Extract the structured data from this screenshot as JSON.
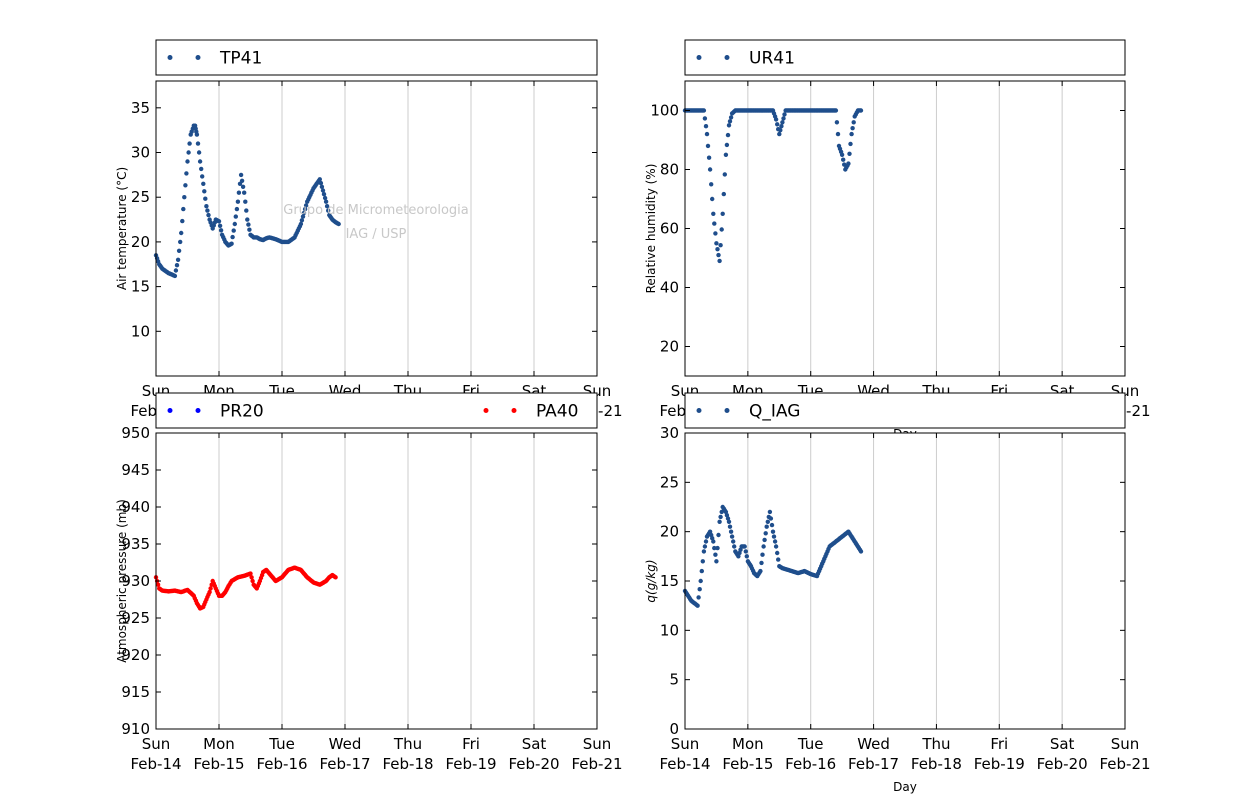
{
  "watermark": {
    "line1": "Grupo de Micrometeorologia",
    "line2": "IAG / USP"
  },
  "x_tick_labels": [
    [
      "Sun",
      "Feb-14"
    ],
    [
      "Mon",
      "Feb-15"
    ],
    [
      "Tue",
      "Feb-16"
    ],
    [
      "Wed",
      "Feb-17"
    ],
    [
      "Thu",
      "Feb-18"
    ],
    [
      "Fri",
      "Feb-19"
    ],
    [
      "Sat",
      "Feb-20"
    ],
    [
      "Sun",
      "Feb-21"
    ]
  ],
  "chart_data": [
    {
      "id": "temp",
      "type": "scatter",
      "xlabel": "",
      "ylabel": "Air temperature (°C)",
      "xlim": [
        0,
        7
      ],
      "ylim": [
        5,
        38
      ],
      "yticks": [
        10,
        15,
        20,
        25,
        30,
        35
      ],
      "grid": "x",
      "legend": "top",
      "series": [
        {
          "name": "TP41",
          "color": "#1f4e8c",
          "x": [
            0,
            0.05,
            0.1,
            0.2,
            0.3,
            0.35,
            0.4,
            0.45,
            0.5,
            0.55,
            0.6,
            0.62,
            0.65,
            0.7,
            0.75,
            0.8,
            0.85,
            0.9,
            0.95,
            1.0,
            1.05,
            1.1,
            1.15,
            1.2,
            1.25,
            1.3,
            1.35,
            1.4,
            1.45,
            1.5,
            1.55,
            1.6,
            1.65,
            1.7,
            1.75,
            1.8,
            1.9,
            2.0,
            2.1,
            2.2,
            2.3,
            2.4,
            2.5,
            2.6,
            2.7,
            2.75,
            2.8,
            2.85,
            2.9
          ],
          "y": [
            18.5,
            17.5,
            17.0,
            16.5,
            16.2,
            18.0,
            21.0,
            25.0,
            29.0,
            32.0,
            33.0,
            33.0,
            32.0,
            29.0,
            26.5,
            24.0,
            22.5,
            21.5,
            22.5,
            22.3,
            20.8,
            20.0,
            19.6,
            19.8,
            22.0,
            24.5,
            27.5,
            25.5,
            22.5,
            20.8,
            20.5,
            20.5,
            20.3,
            20.2,
            20.4,
            20.5,
            20.3,
            20.0,
            20.0,
            20.5,
            22.0,
            24.5,
            26.0,
            27.0,
            24.5,
            23.0,
            22.5,
            22.2,
            22.0
          ]
        }
      ]
    },
    {
      "id": "rh",
      "type": "scatter",
      "xlabel": "Day",
      "ylabel": "Relative humidity (%)",
      "xlim": [
        0,
        7
      ],
      "ylim": [
        10,
        110
      ],
      "yticks": [
        20,
        40,
        60,
        80,
        100
      ],
      "grid": "x",
      "legend": "top",
      "series": [
        {
          "name": "UR41",
          "color": "#1f4e8c",
          "x": [
            0,
            0.1,
            0.2,
            0.3,
            0.35,
            0.4,
            0.45,
            0.5,
            0.55,
            0.6,
            0.65,
            0.7,
            0.75,
            0.8,
            0.85,
            0.9,
            1.0,
            1.2,
            1.4,
            1.45,
            1.5,
            1.55,
            1.6,
            1.8,
            2.0,
            2.2,
            2.4,
            2.45,
            2.5,
            2.55,
            2.6,
            2.65,
            2.7,
            2.75,
            2.8
          ],
          "y": [
            100,
            100,
            100,
            100,
            92,
            80,
            65,
            55,
            49,
            65,
            85,
            95,
            99,
            100,
            100,
            100,
            100,
            100,
            100,
            97,
            92,
            96,
            100,
            100,
            100,
            100,
            100,
            88,
            85,
            80,
            82,
            92,
            98,
            100,
            100
          ]
        }
      ]
    },
    {
      "id": "pressure",
      "type": "scatter",
      "xlabel": "",
      "ylabel": "Atmospheric pressure (mb)",
      "xlim": [
        0,
        7
      ],
      "ylim": [
        910,
        950
      ],
      "yticks": [
        910,
        915,
        920,
        925,
        930,
        935,
        940,
        945,
        950
      ],
      "grid": "x",
      "legend": "top",
      "series": [
        {
          "name": "PR20",
          "color": "#0000ff",
          "x": [],
          "y": []
        },
        {
          "name": "PA40",
          "color": "#ff0000",
          "x": [
            0,
            0.05,
            0.1,
            0.2,
            0.3,
            0.4,
            0.5,
            0.6,
            0.65,
            0.7,
            0.75,
            0.8,
            0.85,
            0.9,
            0.95,
            1.0,
            1.05,
            1.1,
            1.15,
            1.2,
            1.3,
            1.4,
            1.5,
            1.55,
            1.6,
            1.65,
            1.7,
            1.75,
            1.8,
            1.9,
            2.0,
            2.1,
            2.2,
            2.3,
            2.4,
            2.5,
            2.6,
            2.7,
            2.75,
            2.8,
            2.85
          ],
          "y": [
            930.5,
            929.0,
            928.7,
            928.6,
            928.7,
            928.5,
            928.8,
            928.0,
            927.0,
            926.3,
            926.5,
            927.5,
            928.5,
            930.0,
            929.0,
            928.0,
            928.0,
            928.5,
            929.3,
            930.0,
            930.5,
            930.7,
            931.0,
            929.5,
            929.0,
            930.0,
            931.2,
            931.5,
            931.0,
            930.0,
            930.5,
            931.5,
            931.8,
            931.5,
            930.5,
            929.8,
            929.5,
            930.0,
            930.5,
            930.8,
            930.5
          ]
        }
      ]
    },
    {
      "id": "q",
      "type": "scatter",
      "xlabel": "Day",
      "ylabel": "q(g/kg)",
      "xlim": [
        0,
        7
      ],
      "ylim": [
        0,
        30
      ],
      "yticks": [
        0,
        5,
        10,
        15,
        20,
        25,
        30
      ],
      "grid": "x",
      "legend": "top",
      "series": [
        {
          "name": "Q_IAG",
          "color": "#1f4e8c",
          "x": [
            0,
            0.1,
            0.2,
            0.25,
            0.3,
            0.35,
            0.4,
            0.45,
            0.5,
            0.55,
            0.6,
            0.65,
            0.7,
            0.75,
            0.8,
            0.85,
            0.9,
            0.95,
            1.0,
            1.05,
            1.1,
            1.15,
            1.2,
            1.25,
            1.3,
            1.35,
            1.4,
            1.45,
            1.5,
            1.55,
            1.6,
            1.7,
            1.8,
            1.9,
            2.0,
            2.1,
            2.2,
            2.3,
            2.4,
            2.5,
            2.6,
            2.7,
            2.75,
            2.8
          ],
          "y": [
            14.0,
            13.0,
            12.5,
            15.0,
            18.0,
            19.5,
            20.0,
            19.0,
            17.0,
            21.0,
            22.5,
            22.0,
            21.0,
            19.5,
            18.0,
            17.5,
            18.5,
            18.5,
            17.0,
            16.5,
            15.8,
            15.5,
            16.0,
            18.5,
            20.5,
            22.0,
            20.0,
            18.5,
            16.5,
            16.3,
            16.2,
            16.0,
            15.8,
            16.0,
            15.7,
            15.5,
            17.0,
            18.5,
            19.0,
            19.5,
            20.0,
            19.0,
            18.5,
            18.0
          ]
        }
      ]
    }
  ]
}
